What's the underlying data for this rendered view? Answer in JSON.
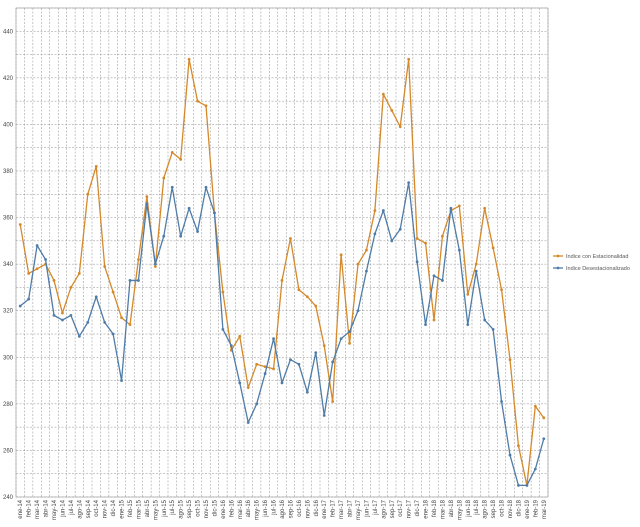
{
  "chart_data": {
    "type": "line",
    "title": "",
    "xlabel": "",
    "ylabel": "",
    "ylim": [
      240,
      450
    ],
    "y_ticks": [
      240,
      260,
      280,
      300,
      320,
      340,
      360,
      380,
      400,
      420,
      440
    ],
    "grid": true,
    "legend_position": "right",
    "categories": [
      "ene-14",
      "feb-14",
      "mar-14",
      "abr-14",
      "may-14",
      "jun-14",
      "jul-14",
      "ago-14",
      "sep-14",
      "oct-14",
      "nov-14",
      "dic-14",
      "ene-15",
      "feb-15",
      "mar-15",
      "abr-15",
      "may-15",
      "jun-15",
      "jul-15",
      "ago-15",
      "sep-15",
      "oct-15",
      "nov-15",
      "dic-15",
      "ene-16",
      "feb-16",
      "mar-16",
      "abr-16",
      "may-16",
      "jun-16",
      "jul-16",
      "ago-16",
      "sep-16",
      "oct-16",
      "nov-16",
      "dic-16",
      "ene-17",
      "feb-17",
      "mar-17",
      "abr-17",
      "may-17",
      "jun-17",
      "jul-17",
      "ago-17",
      "sep-17",
      "oct-17",
      "nov-17",
      "dic-17",
      "ene-18",
      "feb-18",
      "mar-18",
      "abr-18",
      "may-18",
      "jun-18",
      "jul-18",
      "ago-18",
      "sep-18",
      "oct-18",
      "nov-18",
      "dic-18",
      "ene-19",
      "feb-19",
      "mar-19"
    ],
    "series": [
      {
        "name": "Indice con Estacionalidad",
        "color": "#d4892a",
        "values": [
          357,
          336,
          338,
          340,
          333,
          319,
          330,
          336,
          370,
          382,
          339,
          328,
          317,
          314,
          342,
          369,
          339,
          377,
          388,
          385,
          428,
          410,
          408,
          362,
          328,
          303,
          309,
          287,
          297,
          296,
          295,
          333,
          351,
          329,
          326,
          322,
          305,
          281,
          344,
          306,
          340,
          346,
          363,
          413,
          406,
          399,
          428,
          351,
          349,
          316,
          352,
          363,
          365,
          327,
          340,
          364,
          347,
          329,
          299,
          262,
          245,
          279,
          274
        ],
        "labels": [
          "ene-14",
          "",
          "mar-14",
          "",
          "may-14",
          "",
          "jul-14",
          "",
          "sep-14",
          "",
          "nov-14",
          "",
          "ene-15",
          "",
          "mar-15",
          "",
          "may-15",
          "",
          "jul-15",
          "",
          "sep-15",
          "",
          "nov-15",
          "",
          "ene-16",
          "",
          "mar-16",
          "",
          "may-16",
          "",
          "jul-16",
          "",
          "sep-16",
          "",
          "nov-16",
          "",
          "ene-17",
          "",
          "mar-17",
          "",
          "may-17",
          "",
          "jul-17",
          "",
          "sep-17",
          "",
          "nov-17",
          "",
          "ene-18",
          "",
          "mar-18",
          "",
          "may-18",
          "",
          "jul-18",
          "",
          "sep-18",
          "",
          "nov-18",
          "",
          "ene-19",
          "",
          "mar-19"
        ]
      },
      {
        "name": "Indice Desestacionalizado",
        "color": "#4f7ca8",
        "values": [
          322,
          325,
          348,
          342,
          318,
          316,
          318,
          309,
          315,
          326,
          315,
          310,
          290,
          333,
          333,
          366,
          340,
          352,
          373,
          352,
          364,
          354,
          373,
          362,
          312,
          305,
          289,
          272,
          280,
          293,
          308,
          289,
          299,
          297,
          285,
          302,
          275,
          298,
          308,
          311,
          320,
          337,
          353,
          363,
          350,
          355,
          375,
          341,
          314,
          335,
          333,
          364,
          346,
          314,
          337,
          316,
          312,
          281,
          258,
          245,
          245,
          252,
          265
        ]
      }
    ]
  }
}
